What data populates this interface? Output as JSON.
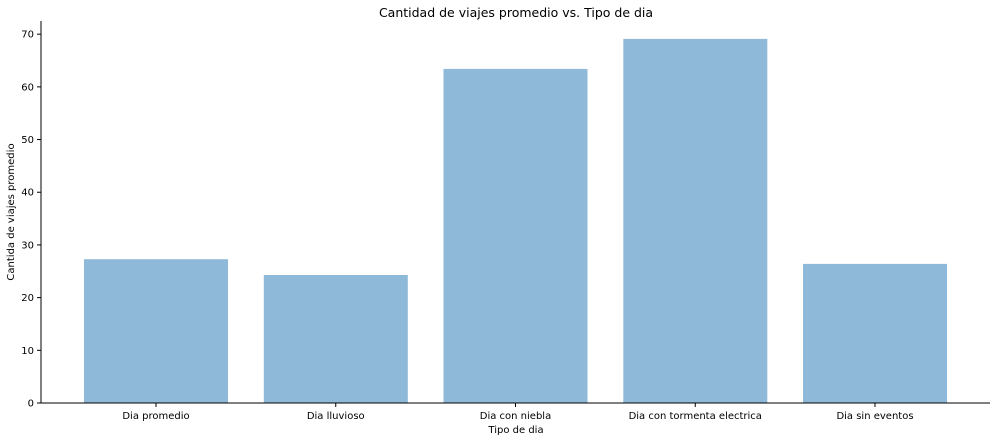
{
  "chart_data": {
    "type": "bar",
    "title": "Cantidad de viajes promedio vs. Tipo de dia",
    "xlabel": "Tipo de dia",
    "ylabel": "Cantida de viajes promedio",
    "categories": [
      "Dia promedio",
      "Dia lluvioso",
      "Dia con niebla",
      "Dia con tormenta electrica",
      "Dia sin eventos"
    ],
    "values": [
      27.3,
      24.3,
      63.4,
      69.1,
      26.4
    ],
    "ylim": [
      0,
      72.5
    ],
    "yticks": [
      0,
      10,
      20,
      30,
      40,
      50,
      60,
      70
    ],
    "grid": false,
    "legend": "none",
    "bar_color": "#8fb9d9"
  }
}
